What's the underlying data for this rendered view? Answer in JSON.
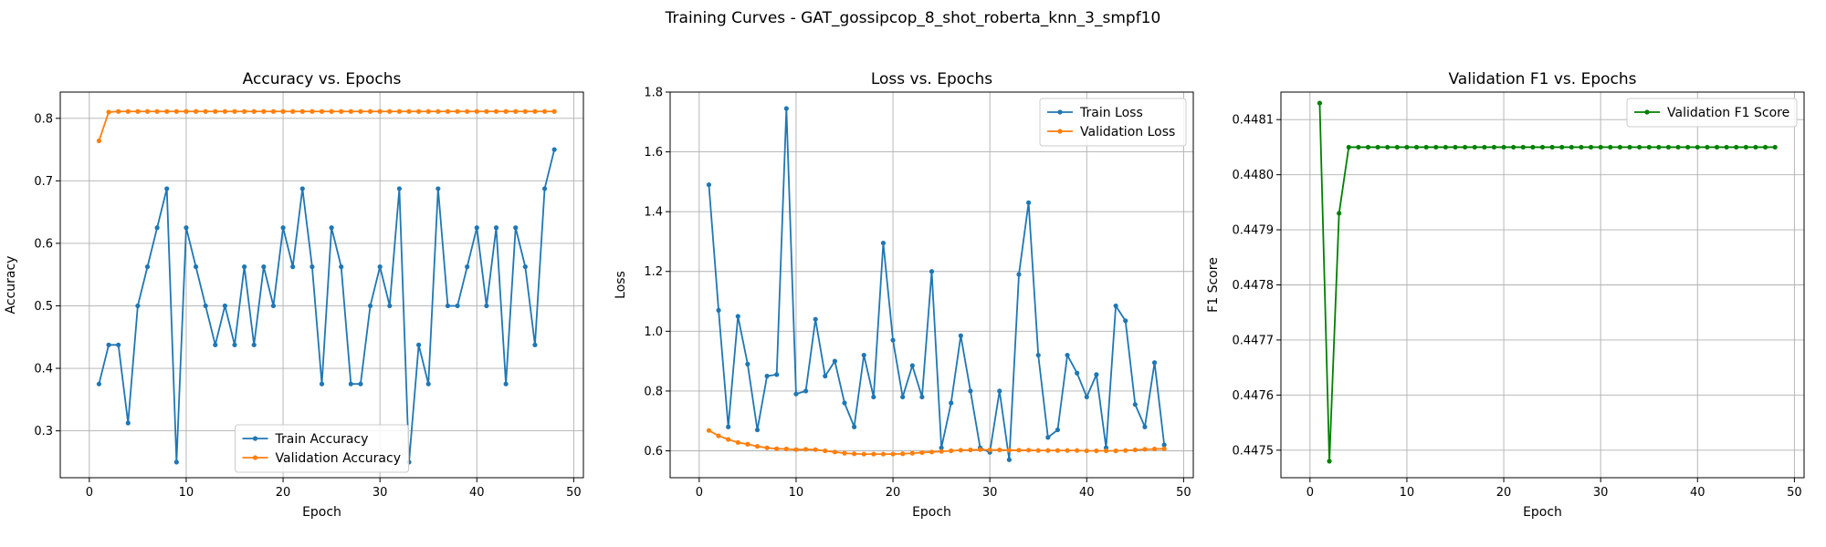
{
  "figure": {
    "suptitle": "Training Curves - GAT_gossipcop_8_shot_roberta_knn_3_smpf10"
  },
  "colors": {
    "blue": "#1f77b4",
    "orange": "#ff7f0e",
    "green": "#008000"
  },
  "chart_data": [
    {
      "type": "line",
      "title": "Accuracy vs. Epochs",
      "xlabel": "Epoch",
      "ylabel": "Accuracy",
      "xlim": [
        -3,
        51
      ],
      "ylim": [
        0.225,
        0.842
      ],
      "xticks": [
        0,
        10,
        20,
        30,
        40,
        50
      ],
      "xtick_labels": [
        "0",
        "10",
        "20",
        "30",
        "40",
        "50"
      ],
      "yticks": [
        0.3,
        0.4,
        0.5,
        0.6,
        0.7,
        0.8
      ],
      "ytick_labels": [
        "0.3",
        "0.4",
        "0.5",
        "0.6",
        "0.7",
        "0.8"
      ],
      "grid": true,
      "legend_position": "bottom-center",
      "x": [
        1,
        2,
        3,
        4,
        5,
        6,
        7,
        8,
        9,
        10,
        11,
        12,
        13,
        14,
        15,
        16,
        17,
        18,
        19,
        20,
        21,
        22,
        23,
        24,
        25,
        26,
        27,
        28,
        29,
        30,
        31,
        32,
        33,
        34,
        35,
        36,
        37,
        38,
        39,
        40,
        41,
        42,
        43,
        44,
        45,
        46,
        47,
        48
      ],
      "series": [
        {
          "name": "Train Accuracy",
          "color": "#1f77b4",
          "values": [
            0.375,
            0.4375,
            0.4375,
            0.3125,
            0.5,
            0.5625,
            0.625,
            0.6875,
            0.25,
            0.625,
            0.5625,
            0.5,
            0.4375,
            0.5,
            0.4375,
            0.5625,
            0.4375,
            0.5625,
            0.5,
            0.625,
            0.5625,
            0.6875,
            0.5625,
            0.375,
            0.625,
            0.5625,
            0.375,
            0.375,
            0.5,
            0.5625,
            0.5,
            0.6875,
            0.25,
            0.4375,
            0.375,
            0.6875,
            0.5,
            0.5,
            0.5625,
            0.625,
            0.5,
            0.625,
            0.375,
            0.625,
            0.5625,
            0.4375,
            0.6875,
            0.75
          ]
        },
        {
          "name": "Validation Accuracy",
          "color": "#ff7f0e",
          "values": [
            0.764,
            0.81,
            0.811,
            0.811,
            0.811,
            0.811,
            0.811,
            0.811,
            0.811,
            0.811,
            0.811,
            0.811,
            0.811,
            0.811,
            0.811,
            0.811,
            0.811,
            0.811,
            0.811,
            0.811,
            0.811,
            0.811,
            0.811,
            0.811,
            0.811,
            0.811,
            0.811,
            0.811,
            0.811,
            0.811,
            0.811,
            0.811,
            0.811,
            0.811,
            0.811,
            0.811,
            0.811,
            0.811,
            0.811,
            0.811,
            0.811,
            0.811,
            0.811,
            0.811,
            0.811,
            0.811,
            0.811,
            0.811
          ]
        }
      ]
    },
    {
      "type": "line",
      "title": "Loss vs. Epochs",
      "xlabel": "Epoch",
      "ylabel": "Loss",
      "xlim": [
        -3,
        51
      ],
      "ylim": [
        0.51,
        1.8
      ],
      "xticks": [
        0,
        10,
        20,
        30,
        40,
        50
      ],
      "xtick_labels": [
        "0",
        "10",
        "20",
        "30",
        "40",
        "50"
      ],
      "yticks": [
        0.6,
        0.8,
        1.0,
        1.2,
        1.4,
        1.6,
        1.8
      ],
      "ytick_labels": [
        "0.6",
        "0.8",
        "1.0",
        "1.2",
        "1.4",
        "1.6",
        "1.8"
      ],
      "grid": true,
      "legend_position": "top-right",
      "x": [
        1,
        2,
        3,
        4,
        5,
        6,
        7,
        8,
        9,
        10,
        11,
        12,
        13,
        14,
        15,
        16,
        17,
        18,
        19,
        20,
        21,
        22,
        23,
        24,
        25,
        26,
        27,
        28,
        29,
        30,
        31,
        32,
        33,
        34,
        35,
        36,
        37,
        38,
        39,
        40,
        41,
        42,
        43,
        44,
        45,
        46,
        47,
        48
      ],
      "series": [
        {
          "name": "Train Loss",
          "color": "#1f77b4",
          "values": [
            1.49,
            1.07,
            0.68,
            1.05,
            0.89,
            0.67,
            0.85,
            0.855,
            1.745,
            0.79,
            0.8,
            1.04,
            0.85,
            0.9,
            0.76,
            0.68,
            0.92,
            0.78,
            1.295,
            0.97,
            0.78,
            0.885,
            0.78,
            1.2,
            0.61,
            0.76,
            0.985,
            0.8,
            0.61,
            0.595,
            0.8,
            0.57,
            1.19,
            1.43,
            0.92,
            0.645,
            0.67,
            0.92,
            0.86,
            0.78,
            0.855,
            0.61,
            1.085,
            1.035,
            0.755,
            0.68,
            0.895,
            0.62
          ]
        },
        {
          "name": "Validation Loss",
          "color": "#ff7f0e",
          "values": [
            0.668,
            0.65,
            0.638,
            0.628,
            0.622,
            0.615,
            0.61,
            0.607,
            0.606,
            0.604,
            0.605,
            0.604,
            0.6,
            0.596,
            0.592,
            0.59,
            0.589,
            0.589,
            0.589,
            0.589,
            0.59,
            0.592,
            0.594,
            0.596,
            0.598,
            0.6,
            0.602,
            0.603,
            0.604,
            0.603,
            0.603,
            0.602,
            0.602,
            0.602,
            0.601,
            0.601,
            0.601,
            0.601,
            0.601,
            0.6,
            0.6,
            0.6,
            0.6,
            0.601,
            0.603,
            0.605,
            0.606,
            0.607
          ]
        }
      ]
    },
    {
      "type": "line",
      "title": "Validation F1 vs. Epochs",
      "xlabel": "Epoch",
      "ylabel": "F1 Score",
      "xlim": [
        -3,
        51
      ],
      "ylim": [
        0.44745,
        0.44815
      ],
      "xticks": [
        0,
        10,
        20,
        30,
        40,
        50
      ],
      "xtick_labels": [
        "0",
        "10",
        "20",
        "30",
        "40",
        "50"
      ],
      "yticks": [
        0.4475,
        0.4476,
        0.4477,
        0.4478,
        0.4479,
        0.448,
        0.4481
      ],
      "ytick_labels": [
        "0.4475",
        "0.4476",
        "0.4477",
        "0.4478",
        "0.4479",
        "0.4480",
        "0.4481"
      ],
      "grid": true,
      "legend_position": "top-right",
      "x": [
        1,
        2,
        3,
        4,
        5,
        6,
        7,
        8,
        9,
        10,
        11,
        12,
        13,
        14,
        15,
        16,
        17,
        18,
        19,
        20,
        21,
        22,
        23,
        24,
        25,
        26,
        27,
        28,
        29,
        30,
        31,
        32,
        33,
        34,
        35,
        36,
        37,
        38,
        39,
        40,
        41,
        42,
        43,
        44,
        45,
        46,
        47,
        48
      ],
      "series": [
        {
          "name": "Validation F1 Score",
          "color": "#008000",
          "values": [
            0.44813,
            0.44748,
            0.44793,
            0.44805,
            0.44805,
            0.44805,
            0.44805,
            0.44805,
            0.44805,
            0.44805,
            0.44805,
            0.44805,
            0.44805,
            0.44805,
            0.44805,
            0.44805,
            0.44805,
            0.44805,
            0.44805,
            0.44805,
            0.44805,
            0.44805,
            0.44805,
            0.44805,
            0.44805,
            0.44805,
            0.44805,
            0.44805,
            0.44805,
            0.44805,
            0.44805,
            0.44805,
            0.44805,
            0.44805,
            0.44805,
            0.44805,
            0.44805,
            0.44805,
            0.44805,
            0.44805,
            0.44805,
            0.44805,
            0.44805,
            0.44805,
            0.44805,
            0.44805,
            0.44805,
            0.44805
          ]
        }
      ]
    }
  ]
}
